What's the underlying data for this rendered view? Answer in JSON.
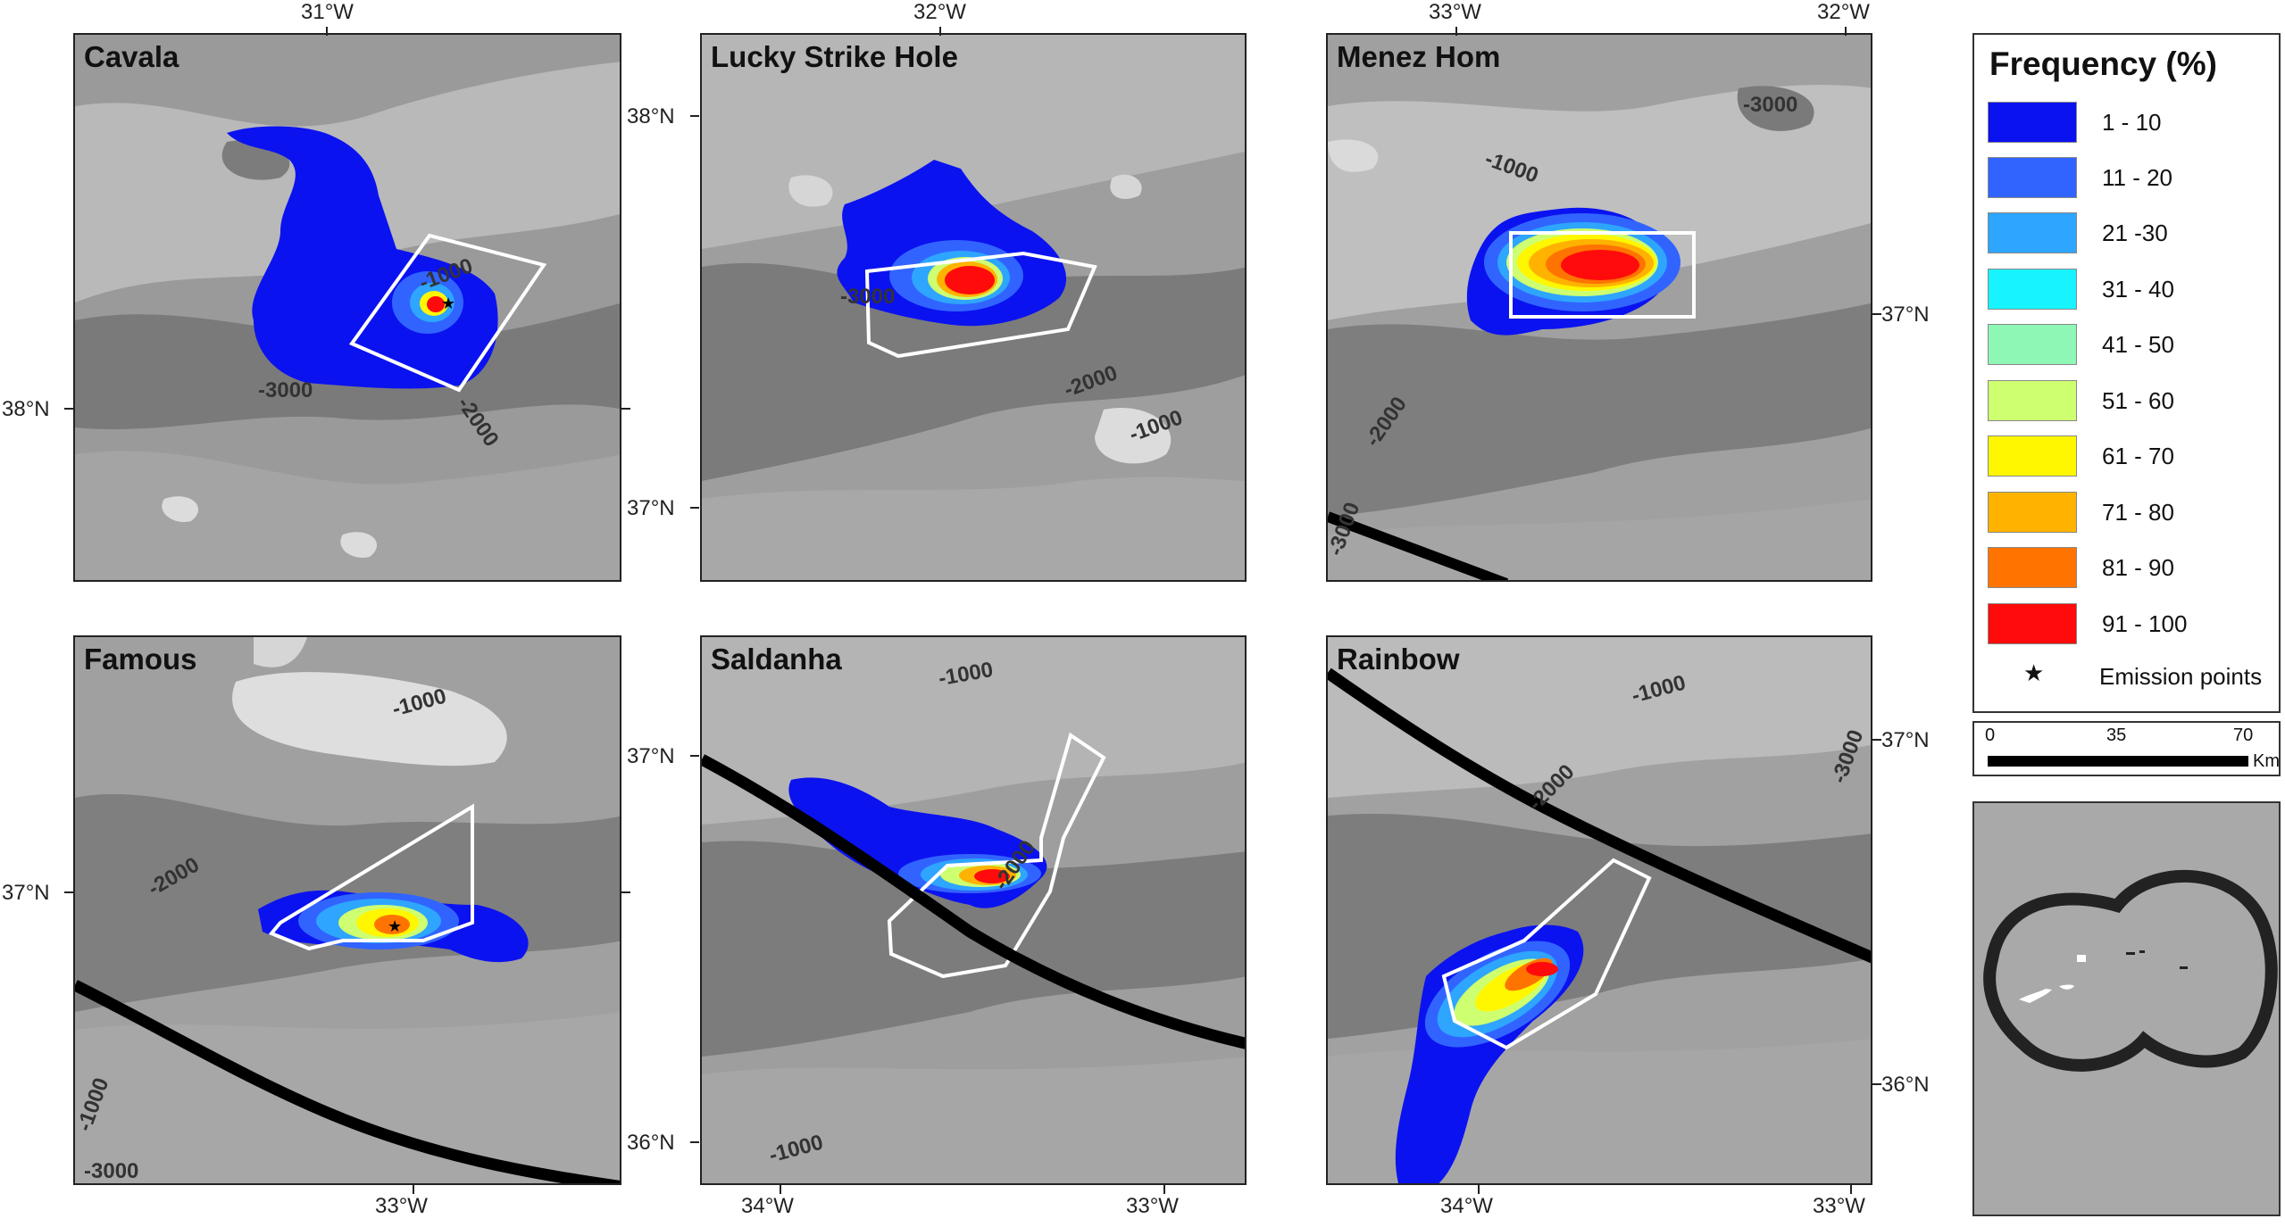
{
  "panels": [
    {
      "title": "Cavala",
      "top_ticks": [
        {
          "label": "31°W"
        }
      ],
      "left_ticks": [
        {
          "label": "38°N"
        }
      ],
      "bottom_ticks": [],
      "right_ticks": [],
      "contours": [
        {
          "label": "-1000"
        },
        {
          "label": "-3000"
        },
        {
          "label": "-2000"
        }
      ]
    },
    {
      "title": "Lucky Strike Hole",
      "top_ticks": [
        {
          "label": "32°W"
        }
      ],
      "left_ticks": [
        {
          "label": "38°N"
        },
        {
          "label": "37°N"
        }
      ],
      "bottom_ticks": [],
      "right_ticks": [],
      "contours": [
        {
          "label": "-3000"
        },
        {
          "label": "-2000"
        },
        {
          "label": "-1000"
        }
      ]
    },
    {
      "title": "Menez Hom",
      "top_ticks": [
        {
          "label": "33°W"
        },
        {
          "label": "32°W"
        }
      ],
      "left_ticks": [],
      "bottom_ticks": [],
      "right_ticks": [
        {
          "label": "37°N"
        }
      ],
      "contours": [
        {
          "label": "-3000"
        },
        {
          "label": "-1000"
        },
        {
          "label": "-2000"
        },
        {
          "label": "-3000"
        }
      ]
    },
    {
      "title": "Famous",
      "top_ticks": [],
      "left_ticks": [],
      "bottom_ticks": [
        {
          "label": "33°W"
        }
      ],
      "right_ticks": [],
      "contours": [
        {
          "label": "-1000"
        },
        {
          "label": "-2000"
        },
        {
          "label": "-1000"
        },
        {
          "label": "-3000"
        }
      ]
    },
    {
      "title": "Saldanha",
      "top_ticks": [],
      "left_ticks": [
        {
          "label": "37°N"
        },
        {
          "label": "36°N"
        }
      ],
      "bottom_ticks": [
        {
          "label": "34°W"
        },
        {
          "label": "33°W"
        }
      ],
      "right_ticks": [],
      "contours": [
        {
          "label": "-1000"
        },
        {
          "label": "-2000"
        },
        {
          "label": "-1000"
        }
      ]
    },
    {
      "title": "Rainbow",
      "top_ticks": [],
      "left_ticks": [],
      "bottom_ticks": [
        {
          "label": "34°W"
        },
        {
          "label": "33°W"
        }
      ],
      "right_ticks": [
        {
          "label": "37°N"
        },
        {
          "label": "36°N"
        }
      ],
      "contours": [
        {
          "label": "-1000"
        },
        {
          "label": "-2000"
        },
        {
          "label": "-3000"
        }
      ]
    }
  ],
  "extra_left_tick": {
    "label": "37°N"
  },
  "legend": {
    "title": "Frequency (%)",
    "items": [
      {
        "label": "1 - 10",
        "color": "#0b12f0"
      },
      {
        "label": "11 - 20",
        "color": "#3164ff"
      },
      {
        "label": "21 -30",
        "color": "#2ea5ff"
      },
      {
        "label": "31 - 40",
        "color": "#17f4ff"
      },
      {
        "label": "41 - 50",
        "color": "#8ff7b5"
      },
      {
        "label": "51 - 60",
        "color": "#cdff70"
      },
      {
        "label": "61 - 70",
        "color": "#fff700"
      },
      {
        "label": "71 - 80",
        "color": "#ffb300"
      },
      {
        "label": "81 - 90",
        "color": "#ff7400"
      },
      {
        "label": "91 - 100",
        "color": "#ff0b0b"
      }
    ],
    "emission_symbol": "★",
    "emission_label": "Emission points"
  },
  "scale": {
    "labels": [
      "0",
      "35",
      "70"
    ],
    "unit": "Km"
  }
}
